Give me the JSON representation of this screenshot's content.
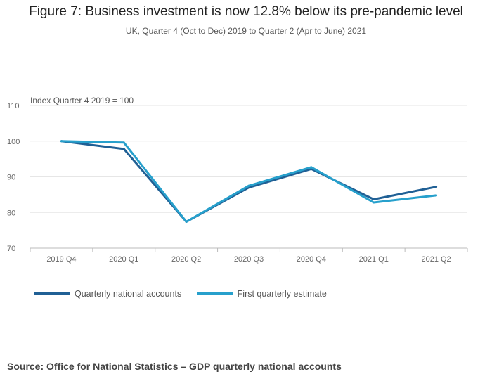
{
  "chart_data": {
    "type": "line",
    "title": "Figure 7: Business investment is now 12.8% below its pre-pandemic level",
    "subtitle": "UK, Quarter 4 (Oct to Dec) 2019 to Quarter 2 (Apr to June) 2021",
    "ylabel": "Index Quarter 4 2019 = 100",
    "xlabel": "",
    "categories": [
      "2019 Q4",
      "2020 Q1",
      "2020 Q2",
      "2020 Q3",
      "2020 Q4",
      "2021 Q1",
      "2021 Q2"
    ],
    "ylim": [
      70,
      110
    ],
    "yticks": [
      70,
      80,
      90,
      100,
      110
    ],
    "grid": true,
    "legend_position": "bottom-left",
    "series": [
      {
        "name": "Quarterly national accounts",
        "color": "#206095",
        "values": [
          100,
          97.8,
          77.4,
          87.0,
          92.2,
          83.7,
          87.2
        ]
      },
      {
        "name": "First quarterly estimate",
        "color": "#27a0cc",
        "values": [
          100,
          99.6,
          77.4,
          87.5,
          92.7,
          82.8,
          84.8
        ]
      }
    ]
  },
  "source": "Source: Office for National Statistics – GDP quarterly national accounts"
}
